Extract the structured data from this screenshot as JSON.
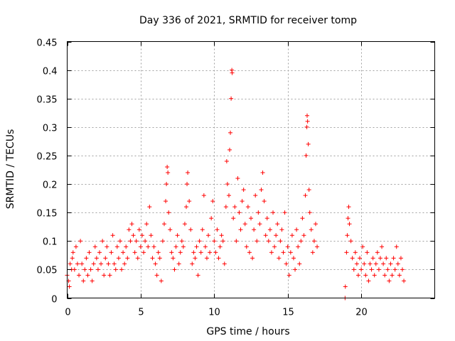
{
  "chart_data": {
    "type": "scatter",
    "title": "Day 336 of 2021, SRMTID for receiver tomp",
    "xlabel": "GPS time / hours",
    "ylabel": "SRMTID / TECUs",
    "xlim": [
      0,
      25
    ],
    "ylim": [
      0,
      0.45
    ],
    "xticks": [
      0,
      5,
      10,
      15,
      20
    ],
    "xtick_labels": [
      "0",
      "5",
      "10",
      "15",
      "20"
    ],
    "yticks": [
      0,
      0.05,
      0.1,
      0.15,
      0.2,
      0.25,
      0.3,
      0.35,
      0.4,
      0.45
    ],
    "ytick_labels": [
      "0",
      "0.05",
      "0.1",
      "0.15",
      "0.2",
      "0.25",
      "0.3",
      "0.35",
      "0.4",
      "0.45"
    ],
    "grid": true,
    "marker": "+",
    "marker_color": "#ff0000",
    "series": [
      {
        "name": "SRMTID",
        "points": [
          [
            0.0,
            0.04
          ],
          [
            0.1,
            0.03
          ],
          [
            0.15,
            0.02
          ],
          [
            0.2,
            0.06
          ],
          [
            0.3,
            0.05
          ],
          [
            0.35,
            0.07
          ],
          [
            0.4,
            0.08
          ],
          [
            0.5,
            0.05
          ],
          [
            0.6,
            0.09
          ],
          [
            0.7,
            0.06
          ],
          [
            0.8,
            0.04
          ],
          [
            0.9,
            0.1
          ],
          [
            1.0,
            0.06
          ],
          [
            1.1,
            0.03
          ],
          [
            1.2,
            0.05
          ],
          [
            1.3,
            0.07
          ],
          [
            1.4,
            0.04
          ],
          [
            1.5,
            0.08
          ],
          [
            1.6,
            0.05
          ],
          [
            1.7,
            0.03
          ],
          [
            1.8,
            0.06
          ],
          [
            1.9,
            0.09
          ],
          [
            2.0,
            0.07
          ],
          [
            2.1,
            0.05
          ],
          [
            2.2,
            0.08
          ],
          [
            2.3,
            0.06
          ],
          [
            2.4,
            0.1
          ],
          [
            2.5,
            0.04
          ],
          [
            2.6,
            0.07
          ],
          [
            2.7,
            0.09
          ],
          [
            2.8,
            0.06
          ],
          [
            2.9,
            0.04
          ],
          [
            3.0,
            0.08
          ],
          [
            3.1,
            0.11
          ],
          [
            3.2,
            0.06
          ],
          [
            3.3,
            0.05
          ],
          [
            3.4,
            0.09
          ],
          [
            3.5,
            0.07
          ],
          [
            3.6,
            0.1
          ],
          [
            3.7,
            0.05
          ],
          [
            3.8,
            0.08
          ],
          [
            3.9,
            0.06
          ],
          [
            4.0,
            0.09
          ],
          [
            4.1,
            0.07
          ],
          [
            4.2,
            0.12
          ],
          [
            4.3,
            0.1
          ],
          [
            4.4,
            0.13
          ],
          [
            4.5,
            0.11
          ],
          [
            4.6,
            0.08
          ],
          [
            4.7,
            0.1
          ],
          [
            4.8,
            0.07
          ],
          [
            4.9,
            0.12
          ],
          [
            5.0,
            0.09
          ],
          [
            5.1,
            0.11
          ],
          [
            5.2,
            0.08
          ],
          [
            5.3,
            0.1
          ],
          [
            5.4,
            0.13
          ],
          [
            5.5,
            0.09
          ],
          [
            5.6,
            0.16
          ],
          [
            5.7,
            0.11
          ],
          [
            5.8,
            0.07
          ],
          [
            5.9,
            0.09
          ],
          [
            6.0,
            0.06
          ],
          [
            6.1,
            0.04
          ],
          [
            6.2,
            0.08
          ],
          [
            6.3,
            0.07
          ],
          [
            6.4,
            0.03
          ],
          [
            6.5,
            0.1
          ],
          [
            6.6,
            0.13
          ],
          [
            6.7,
            0.17
          ],
          [
            6.75,
            0.2
          ],
          [
            6.8,
            0.23
          ],
          [
            6.85,
            0.22
          ],
          [
            6.9,
            0.15
          ],
          [
            7.0,
            0.12
          ],
          [
            7.1,
            0.08
          ],
          [
            7.2,
            0.07
          ],
          [
            7.3,
            0.05
          ],
          [
            7.4,
            0.09
          ],
          [
            7.5,
            0.11
          ],
          [
            7.6,
            0.06
          ],
          [
            7.7,
            0.08
          ],
          [
            7.8,
            0.1
          ],
          [
            7.9,
            0.09
          ],
          [
            8.0,
            0.13
          ],
          [
            8.1,
            0.16
          ],
          [
            8.15,
            0.2
          ],
          [
            8.2,
            0.22
          ],
          [
            8.3,
            0.17
          ],
          [
            8.4,
            0.12
          ],
          [
            8.5,
            0.06
          ],
          [
            8.6,
            0.08
          ],
          [
            8.7,
            0.07
          ],
          [
            8.8,
            0.09
          ],
          [
            8.9,
            0.04
          ],
          [
            9.0,
            0.1
          ],
          [
            9.1,
            0.08
          ],
          [
            9.2,
            0.12
          ],
          [
            9.3,
            0.18
          ],
          [
            9.4,
            0.09
          ],
          [
            9.5,
            0.07
          ],
          [
            9.6,
            0.11
          ],
          [
            9.7,
            0.08
          ],
          [
            9.8,
            0.14
          ],
          [
            9.9,
            0.17
          ],
          [
            10.0,
            0.1
          ],
          [
            10.1,
            0.08
          ],
          [
            10.2,
            0.12
          ],
          [
            10.3,
            0.07
          ],
          [
            10.4,
            0.09
          ],
          [
            10.5,
            0.11
          ],
          [
            10.6,
            0.1
          ],
          [
            10.7,
            0.06
          ],
          [
            10.8,
            0.16
          ],
          [
            10.85,
            0.24
          ],
          [
            10.9,
            0.2
          ],
          [
            11.0,
            0.18
          ],
          [
            11.05,
            0.26
          ],
          [
            11.1,
            0.29
          ],
          [
            11.15,
            0.35
          ],
          [
            11.2,
            0.4
          ],
          [
            11.22,
            0.395
          ],
          [
            11.3,
            0.14
          ],
          [
            11.4,
            0.16
          ],
          [
            11.5,
            0.1
          ],
          [
            11.6,
            0.21
          ],
          [
            11.7,
            0.15
          ],
          [
            11.8,
            0.12
          ],
          [
            11.9,
            0.17
          ],
          [
            12.0,
            0.19
          ],
          [
            12.1,
            0.13
          ],
          [
            12.2,
            0.09
          ],
          [
            12.3,
            0.16
          ],
          [
            12.4,
            0.08
          ],
          [
            12.5,
            0.14
          ],
          [
            12.6,
            0.07
          ],
          [
            12.7,
            0.12
          ],
          [
            12.8,
            0.18
          ],
          [
            12.9,
            0.1
          ],
          [
            13.0,
            0.15
          ],
          [
            13.1,
            0.13
          ],
          [
            13.2,
            0.19
          ],
          [
            13.3,
            0.22
          ],
          [
            13.4,
            0.17
          ],
          [
            13.5,
            0.11
          ],
          [
            13.6,
            0.14
          ],
          [
            13.7,
            0.1
          ],
          [
            13.8,
            0.12
          ],
          [
            13.9,
            0.08
          ],
          [
            14.0,
            0.15
          ],
          [
            14.1,
            0.09
          ],
          [
            14.2,
            0.11
          ],
          [
            14.3,
            0.13
          ],
          [
            14.4,
            0.07
          ],
          [
            14.5,
            0.1
          ],
          [
            14.6,
            0.12
          ],
          [
            14.7,
            0.08
          ],
          [
            14.8,
            0.15
          ],
          [
            14.9,
            0.06
          ],
          [
            15.0,
            0.09
          ],
          [
            15.1,
            0.04
          ],
          [
            15.2,
            0.08
          ],
          [
            15.3,
            0.11
          ],
          [
            15.4,
            0.07
          ],
          [
            15.5,
            0.05
          ],
          [
            15.6,
            0.12
          ],
          [
            15.7,
            0.09
          ],
          [
            15.8,
            0.06
          ],
          [
            15.9,
            0.1
          ],
          [
            16.0,
            0.14
          ],
          [
            16.1,
            0.11
          ],
          [
            16.2,
            0.18
          ],
          [
            16.25,
            0.25
          ],
          [
            16.3,
            0.3
          ],
          [
            16.32,
            0.32
          ],
          [
            16.35,
            0.31
          ],
          [
            16.4,
            0.27
          ],
          [
            16.45,
            0.19
          ],
          [
            16.5,
            0.15
          ],
          [
            16.6,
            0.12
          ],
          [
            16.7,
            0.08
          ],
          [
            16.8,
            0.1
          ],
          [
            16.9,
            0.13
          ],
          [
            17.0,
            0.09
          ],
          [
            18.9,
            0.0
          ],
          [
            18.92,
            0.02
          ],
          [
            19.0,
            0.08
          ],
          [
            19.05,
            0.11
          ],
          [
            19.1,
            0.14
          ],
          [
            19.15,
            0.16
          ],
          [
            19.2,
            0.13
          ],
          [
            19.3,
            0.1
          ],
          [
            19.4,
            0.07
          ],
          [
            19.5,
            0.05
          ],
          [
            19.6,
            0.08
          ],
          [
            19.7,
            0.06
          ],
          [
            19.8,
            0.04
          ],
          [
            19.9,
            0.07
          ],
          [
            20.0,
            0.05
          ],
          [
            20.1,
            0.09
          ],
          [
            20.2,
            0.06
          ],
          [
            20.3,
            0.04
          ],
          [
            20.4,
            0.08
          ],
          [
            20.5,
            0.03
          ],
          [
            20.6,
            0.06
          ],
          [
            20.7,
            0.05
          ],
          [
            20.8,
            0.07
          ],
          [
            20.9,
            0.04
          ],
          [
            21.0,
            0.06
          ],
          [
            21.1,
            0.08
          ],
          [
            21.2,
            0.05
          ],
          [
            21.3,
            0.07
          ],
          [
            21.4,
            0.09
          ],
          [
            21.5,
            0.06
          ],
          [
            21.6,
            0.04
          ],
          [
            21.7,
            0.07
          ],
          [
            21.8,
            0.05
          ],
          [
            21.9,
            0.03
          ],
          [
            22.0,
            0.06
          ],
          [
            22.1,
            0.04
          ],
          [
            22.2,
            0.07
          ],
          [
            22.3,
            0.05
          ],
          [
            22.4,
            0.09
          ],
          [
            22.5,
            0.06
          ],
          [
            22.6,
            0.04
          ],
          [
            22.7,
            0.07
          ],
          [
            22.8,
            0.05
          ],
          [
            22.9,
            0.03
          ]
        ]
      }
    ]
  }
}
